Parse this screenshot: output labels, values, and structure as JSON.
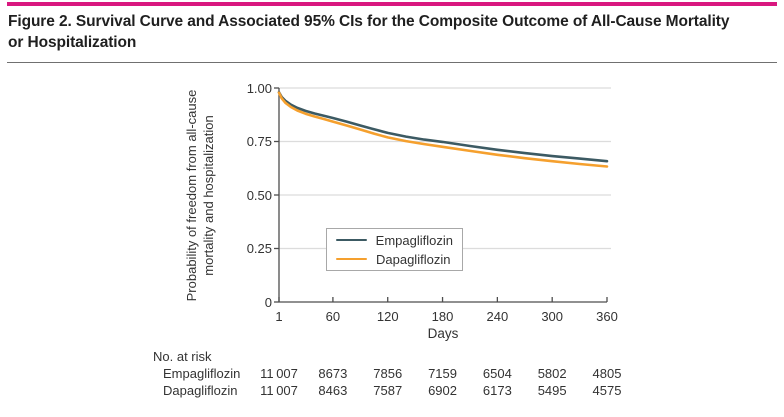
{
  "figure": {
    "accent_bar_color": "#D9177F",
    "title_lines": [
      "Figure 2. Survival Curve and Associated 95% CIs for the Composite Outcome of All-Cause Mortality",
      "or Hospitalization"
    ]
  },
  "chart_data": {
    "type": "line",
    "title": "",
    "xlabel": "Days",
    "ylabel_lines": [
      "Probability of freedom from all-cause",
      "mortality and hospitalization"
    ],
    "xlim": [
      1,
      360
    ],
    "ylim": [
      0,
      1
    ],
    "x_ticks": [
      1,
      60,
      120,
      180,
      240,
      300,
      360
    ],
    "y_ticks": [
      {
        "label": "0",
        "value": 0
      },
      {
        "label": "0.25",
        "value": 0.25
      },
      {
        "label": "0.50",
        "value": 0.5
      },
      {
        "label": "0.75",
        "value": 0.75
      },
      {
        "label": "1.00",
        "value": 1.0
      }
    ],
    "grid": "horizontal",
    "legend_position": "inside-lower-left",
    "axis_color": "#4d4d4d",
    "grid_color": "#dcdcdc",
    "series": [
      {
        "name": "Empagliflozin",
        "color": "#3C5A63",
        "x": [
          1,
          4,
          8,
          14,
          21,
          30,
          40,
          50,
          60,
          75,
          90,
          105,
          120,
          140,
          160,
          180,
          210,
          240,
          270,
          300,
          330,
          360
        ],
        "y": [
          0.98,
          0.958,
          0.94,
          0.922,
          0.907,
          0.893,
          0.881,
          0.87,
          0.86,
          0.843,
          0.825,
          0.807,
          0.79,
          0.773,
          0.759,
          0.748,
          0.729,
          0.711,
          0.696,
          0.682,
          0.67,
          0.658
        ]
      },
      {
        "name": "Dapagliflozin",
        "color": "#F5A02E",
        "x": [
          1,
          4,
          8,
          14,
          21,
          30,
          40,
          50,
          60,
          75,
          90,
          105,
          120,
          140,
          160,
          180,
          210,
          240,
          270,
          300,
          330,
          360
        ],
        "y": [
          0.978,
          0.952,
          0.931,
          0.911,
          0.895,
          0.88,
          0.867,
          0.855,
          0.843,
          0.825,
          0.806,
          0.787,
          0.769,
          0.752,
          0.738,
          0.725,
          0.706,
          0.688,
          0.672,
          0.658,
          0.645,
          0.633
        ]
      }
    ]
  },
  "risk_table": {
    "heading": "No. at risk",
    "rows": [
      {
        "label": "Empagliflozin",
        "values": [
          "11 007",
          "8673",
          "7856",
          "7159",
          "6504",
          "5802",
          "4805"
        ]
      },
      {
        "label": "Dapagliflozin",
        "values": [
          "11 007",
          "8463",
          "7587",
          "6902",
          "6173",
          "5495",
          "4575"
        ]
      }
    ]
  }
}
